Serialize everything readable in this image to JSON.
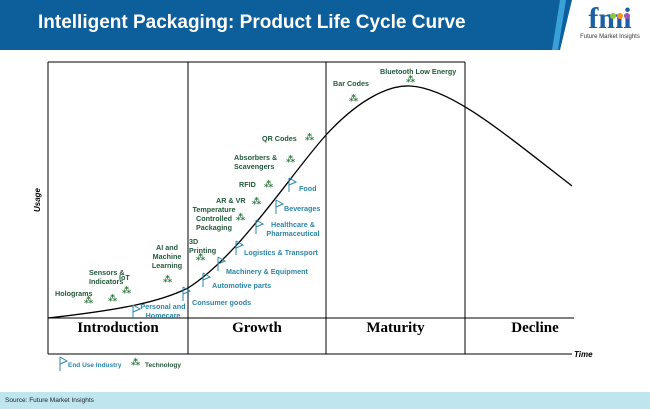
{
  "header": {
    "title": "Intelligent Packaging: Product Life Cycle Curve",
    "logo_text": "fmi",
    "logo_subtitle": "Future Market Insights"
  },
  "axes": {
    "y_label": "Usage",
    "x_label": "Time"
  },
  "phases": [
    "Introduction",
    "Growth",
    "Maturity",
    "Decline"
  ],
  "technology": [
    "Holograms",
    "Sensors & Indicators",
    "IoT",
    "AI and Machine Learning",
    "3D Printing",
    "Temperature Controlled Packaging",
    "AR & VR",
    "RFID",
    "Absorbers & Scavengers",
    "QR Codes",
    "Bar Codes",
    "Bluetooth Low Energy"
  ],
  "end_use": [
    "Personal and Homecare",
    "Consumer goods",
    "Automotive parts",
    "Machinery & Equipment",
    "Logistics & Transport",
    "Healthcare & Pharmaceutical",
    "Beverages",
    "Food"
  ],
  "legend": {
    "end_use": "End Use Industry",
    "technology": "Technology"
  },
  "colors": {
    "header": "#0d5f9c",
    "technology": "#23593a",
    "end_use": "#2b86a8",
    "footer": "#bfe5ef"
  },
  "source": "Source: Future Market Insights"
}
